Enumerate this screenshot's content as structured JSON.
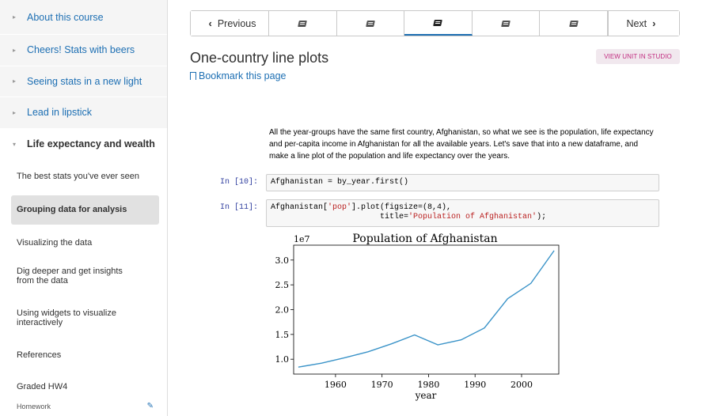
{
  "sidebar": {
    "chapters": [
      {
        "label": "About this course"
      },
      {
        "label": "Cheers! Stats with beers"
      },
      {
        "label": "Seeing stats in a new light"
      },
      {
        "label": "Lead in lipstick"
      },
      {
        "label": "Life expectancy and wealth"
      }
    ],
    "sections": [
      {
        "label": "The best stats you've ever seen"
      },
      {
        "label": "Grouping data for analysis"
      },
      {
        "label": "Visualizing the data"
      },
      {
        "label": "Dig deeper and get insights from the data"
      },
      {
        "label": "Using widgets to visualize interactively"
      },
      {
        "label": "References"
      },
      {
        "label": "Graded HW4"
      }
    ],
    "footer_label": "Homework"
  },
  "nav": {
    "previous_label": "Previous",
    "next_label": "Next",
    "units": [
      "book-icon",
      "book-icon",
      "book-icon",
      "book-icon",
      "book-icon"
    ],
    "active_unit": 2
  },
  "unit": {
    "title": "One-country line plots",
    "bookmark_label": "Bookmark this page",
    "studio_label": "VIEW UNIT IN STUDIO"
  },
  "notebook": {
    "intro": "All the year-groups have the same first country, Afghanistan, so what we see is the population, life expectancy and per-capita income in Afghanistan for all the available years. Let's save that into a new dataframe, and make a line plot of the population and life expectancy over the years.",
    "cell1": {
      "prompt": "In [10]:",
      "code": "Afghanistan = by_year.first()"
    },
    "cell2": {
      "prompt": "In [11]:",
      "code_a": "Afghanistan[",
      "code_str1": "'pop'",
      "code_b": "].plot(figsize=(8,4),",
      "code_c": "                       title=",
      "code_str2": "'Population of Afghanistan'",
      "code_d": ");"
    }
  },
  "chart_data": {
    "type": "line",
    "title": "Population of Afghanistan",
    "xlabel": "year",
    "ylabel": "",
    "offset_label": "1e7",
    "x": [
      1952,
      1957,
      1962,
      1967,
      1972,
      1977,
      1982,
      1987,
      1992,
      1997,
      2002,
      2007
    ],
    "series": [
      {
        "values": [
          0.84,
          0.92,
          1.03,
          1.15,
          1.31,
          1.49,
          1.29,
          1.39,
          1.63,
          2.22,
          2.53,
          3.19
        ],
        "color": "#3a93c8"
      }
    ],
    "xlim": [
      1951,
      2008
    ],
    "ylim": [
      0.7,
      3.3
    ],
    "xticks": [
      1960,
      1970,
      1980,
      1990,
      2000
    ],
    "yticks": [
      1.0,
      1.5,
      2.0,
      2.5,
      3.0
    ],
    "grid": false
  }
}
